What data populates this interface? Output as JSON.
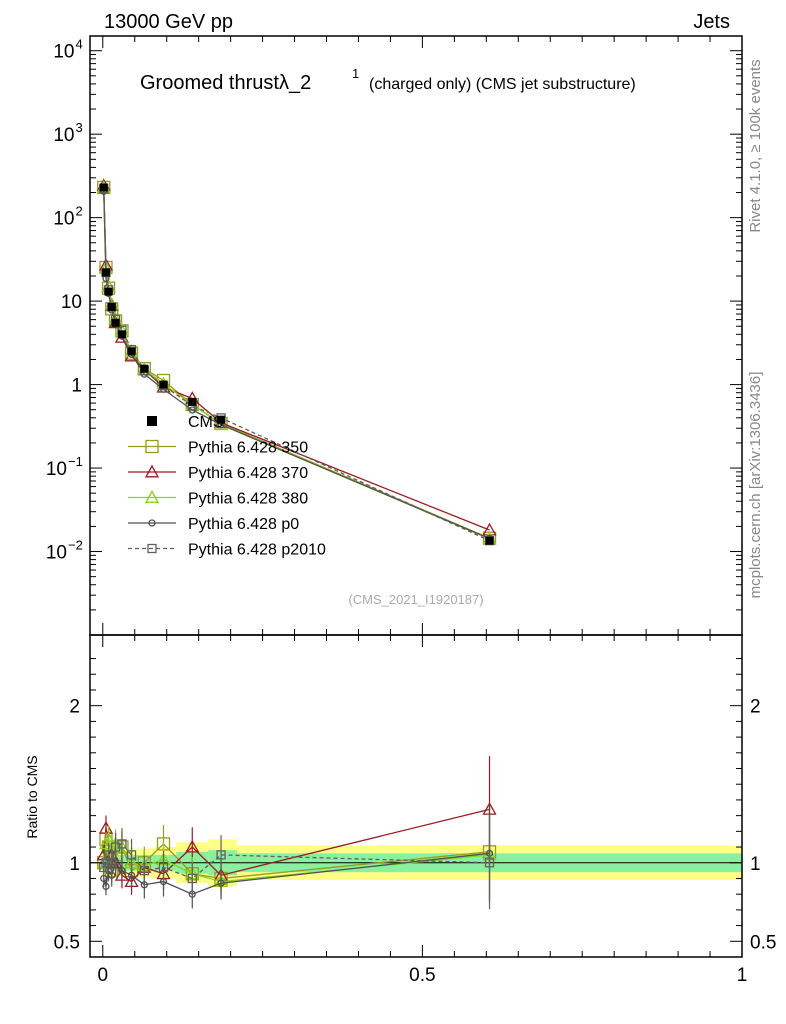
{
  "header": {
    "left": "13000 GeV pp",
    "right": "Jets"
  },
  "side_labels": {
    "rivet": "Rivet 4.1.0, ≥ 100k events",
    "source": "mcplots.cern.ch [arXiv:1306.3436]"
  },
  "chart_data": {
    "type": "line",
    "title": "Groomed thrustλ_2",
    "title_sup": "1",
    "title_suffix": "(charged only) (CMS jet substructure)",
    "watermark": "(CMS_2021_I1920187)",
    "xlim": [
      -0.02,
      1.0
    ],
    "main": {
      "yscale": "log",
      "ylim": [
        0.001,
        15000
      ],
      "yticks": [
        {
          "value": 10000,
          "base": "10",
          "exp": "4"
        },
        {
          "value": 1000,
          "base": "10",
          "exp": "3"
        },
        {
          "value": 100,
          "base": "10",
          "exp": "2"
        },
        {
          "value": 10,
          "base": "10",
          "exp": ""
        },
        {
          "value": 1,
          "base": "1",
          "exp": ""
        },
        {
          "value": 0.1,
          "base": "10",
          "exp": "−1"
        },
        {
          "value": 0.01,
          "base": "10",
          "exp": "−2"
        }
      ]
    },
    "ratio": {
      "ylabel": "Ratio to CMS",
      "ylim": [
        0.4,
        2.45
      ],
      "yticks": [
        {
          "value": 0.5,
          "label": "0.5"
        },
        {
          "value": 1,
          "label": "1"
        },
        {
          "value": 2,
          "label": "2"
        }
      ]
    },
    "xticks": [
      {
        "value": 0,
        "label": "0"
      },
      {
        "value": 0.5,
        "label": "0.5"
      },
      {
        "value": 1,
        "label": "1"
      }
    ],
    "x": [
      0.0015,
      0.005,
      0.009,
      0.014,
      0.02,
      0.03,
      0.045,
      0.065,
      0.095,
      0.14,
      0.185,
      0.605
    ],
    "xedges": [
      0.0,
      0.003,
      0.007,
      0.011,
      0.017,
      0.024,
      0.036,
      0.054,
      0.078,
      0.115,
      0.165,
      0.21,
      1.0
    ],
    "reference": {
      "name": "CMS",
      "values": [
        230,
        22,
        13,
        8.5,
        5.5,
        4.0,
        2.5,
        1.55,
        1.0,
        0.62,
        0.38,
        0.0135
      ],
      "band_inner": [
        0.06,
        0.05,
        0.05,
        0.05,
        0.05,
        0.05,
        0.05,
        0.05,
        0.05,
        0.07,
        0.08,
        0.06
      ],
      "band_outer": [
        0.1,
        0.09,
        0.09,
        0.09,
        0.09,
        0.09,
        0.09,
        0.09,
        0.1,
        0.13,
        0.15,
        0.11
      ]
    },
    "series": [
      {
        "name": "Pythia 6.428 350",
        "color": "#9a9a1e",
        "marker": "square-open",
        "dash": "",
        "ratio": [
          1.0,
          1.15,
          1.1,
          0.95,
          1.05,
          1.1,
          0.95,
          1.0,
          1.12,
          0.93,
          0.9,
          1.07
        ]
      },
      {
        "name": "Pythia 6.428 370",
        "color": "#9b1b24",
        "marker": "triangle-open",
        "dash": "",
        "ratio": [
          1.05,
          1.22,
          1.15,
          1.05,
          1.0,
          0.92,
          0.88,
          0.97,
          0.93,
          1.1,
          0.92,
          1.34
        ]
      },
      {
        "name": "Pythia 6.428 380",
        "color": "#88d418",
        "marker": "triangle-open",
        "dash": "",
        "ratio": [
          1.0,
          1.12,
          1.15,
          1.08,
          1.12,
          1.1,
          1.0,
          0.98,
          1.02,
          0.93,
          0.88,
          1.05
        ]
      },
      {
        "name": "Pythia 6.428 p0",
        "color": "#505050",
        "marker": "circle-open",
        "dash": "",
        "ratio": [
          0.9,
          0.85,
          0.95,
          0.92,
          1.0,
          0.95,
          0.92,
          0.86,
          0.88,
          0.8,
          0.87,
          1.06
        ]
      },
      {
        "name": "Pythia 6.428 p2010",
        "color": "#606060",
        "marker": "square-open",
        "dash": "4,3",
        "ratio": [
          0.97,
          1.0,
          1.05,
          1.0,
          1.1,
          1.12,
          1.05,
          0.95,
          0.97,
          0.9,
          1.05,
          1.0
        ]
      }
    ]
  }
}
